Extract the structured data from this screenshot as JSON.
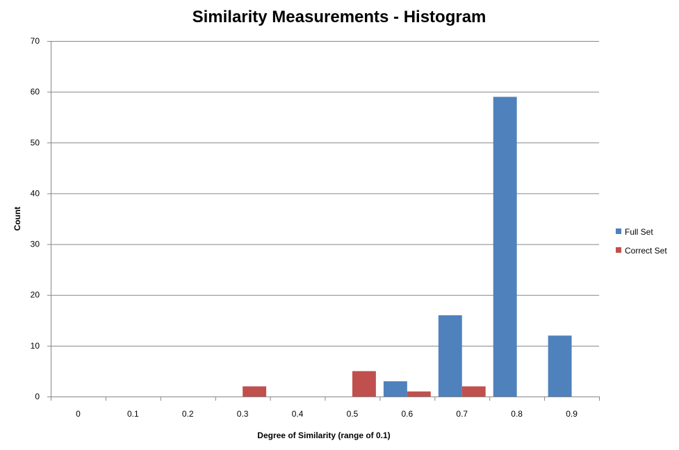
{
  "chart_data": {
    "type": "bar",
    "title": "Similarity Measurements - Histogram",
    "xlabel": "Degree of Similarity  (range of 0.1)",
    "ylabel": "Count",
    "categories": [
      "0",
      "0.1",
      "0.2",
      "0.3",
      "0.4",
      "0.5",
      "0.6",
      "0.7",
      "0.8",
      "0.9"
    ],
    "series": [
      {
        "name": "Full Set",
        "color": "#4F81BD",
        "values": [
          0,
          0,
          0,
          0,
          0,
          0,
          3,
          16,
          59,
          12
        ]
      },
      {
        "name": "Correct Set",
        "color": "#C0504D",
        "values": [
          0,
          0,
          0,
          2,
          0,
          5,
          1,
          2,
          0,
          0
        ]
      }
    ],
    "ylim": [
      0,
      70
    ],
    "yticks": [
      "0",
      "10",
      "20",
      "30",
      "40",
      "50",
      "60",
      "70"
    ],
    "grid": true,
    "legend_position": "right"
  }
}
